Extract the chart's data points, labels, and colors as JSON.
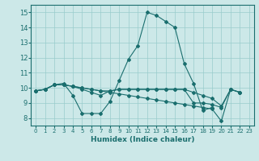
{
  "xlabel": "Humidex (Indice chaleur)",
  "xlim": [
    -0.5,
    23.5
  ],
  "ylim": [
    7.5,
    15.5
  ],
  "yticks": [
    8,
    9,
    10,
    11,
    12,
    13,
    14,
    15
  ],
  "xticks": [
    0,
    1,
    2,
    3,
    4,
    5,
    6,
    7,
    8,
    9,
    10,
    11,
    12,
    13,
    14,
    15,
    16,
    17,
    18,
    19,
    20,
    21,
    22,
    23
  ],
  "bg_color": "#cce8e8",
  "grid_color": "#99cccc",
  "line_color": "#1a6e6e",
  "lines": [
    {
      "x": [
        0,
        1,
        2,
        3,
        4,
        5,
        6,
        7,
        8,
        9,
        10,
        11,
        12,
        13,
        14,
        15,
        16,
        17,
        18,
        19
      ],
      "y": [
        9.8,
        9.9,
        10.2,
        10.3,
        9.5,
        8.3,
        8.3,
        8.3,
        9.1,
        10.5,
        11.9,
        12.8,
        15.0,
        14.8,
        14.4,
        14.0,
        11.6,
        10.3,
        8.5,
        8.7
      ]
    },
    {
      "x": [
        0,
        1,
        2,
        3,
        4,
        5,
        6,
        7,
        8,
        9,
        10,
        11,
        12,
        13,
        14,
        15,
        16,
        17,
        18,
        19,
        20,
        21,
        22
      ],
      "y": [
        9.8,
        9.9,
        10.2,
        10.2,
        10.1,
        10.0,
        9.9,
        9.8,
        9.7,
        9.6,
        9.5,
        9.4,
        9.3,
        9.2,
        9.1,
        9.0,
        8.9,
        8.8,
        8.7,
        8.6,
        7.8,
        9.9,
        9.7
      ]
    },
    {
      "x": [
        0,
        1,
        2,
        3,
        4,
        5,
        6,
        7,
        8,
        9,
        10,
        11,
        12,
        13,
        14,
        15,
        16,
        17,
        18,
        19,
        20,
        21,
        22
      ],
      "y": [
        9.8,
        9.9,
        10.2,
        10.2,
        10.1,
        10.0,
        9.9,
        9.8,
        9.8,
        9.9,
        9.9,
        9.9,
        9.9,
        9.9,
        9.9,
        9.9,
        9.9,
        9.7,
        9.5,
        9.3,
        8.8,
        9.9,
        9.7
      ]
    },
    {
      "x": [
        0,
        1,
        2,
        3,
        4,
        5,
        6,
        7,
        8,
        9,
        10,
        11,
        12,
        13,
        14,
        15,
        16,
        17,
        18,
        19,
        20,
        21,
        22
      ],
      "y": [
        9.8,
        9.9,
        10.2,
        10.2,
        10.1,
        9.9,
        9.7,
        9.5,
        9.8,
        9.9,
        9.9,
        9.9,
        9.9,
        9.9,
        9.9,
        9.9,
        9.9,
        9.0,
        9.0,
        8.9,
        8.7,
        9.9,
        9.7
      ]
    }
  ],
  "xlabel_fontsize": 6.5,
  "tick_fontsize": 5.5
}
